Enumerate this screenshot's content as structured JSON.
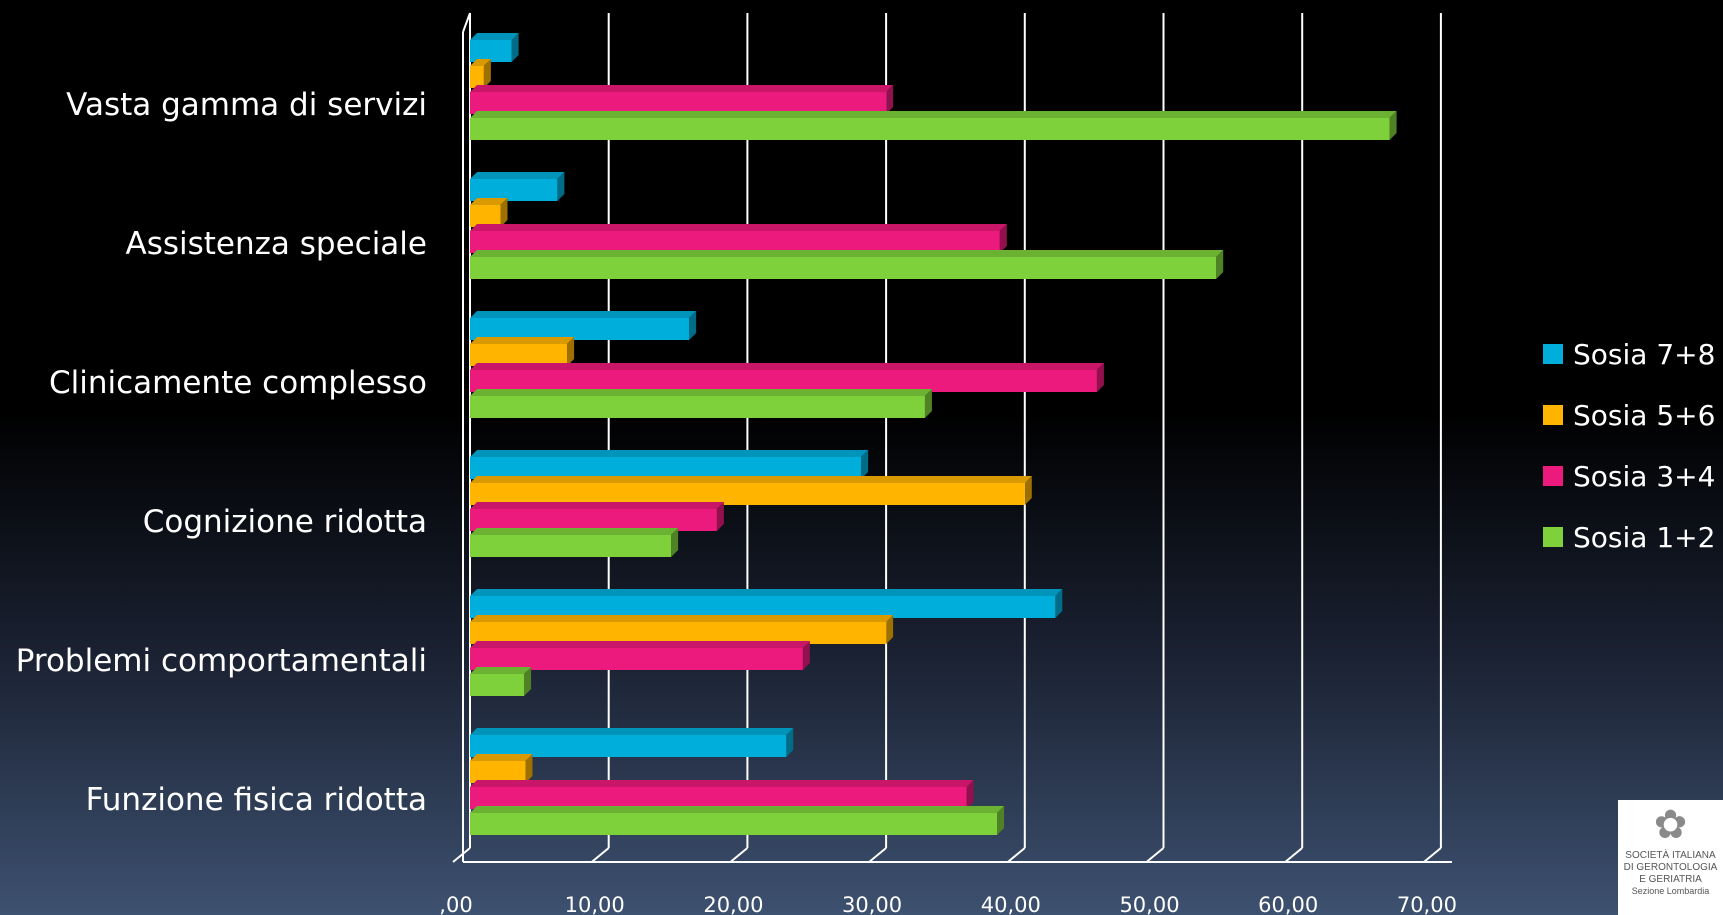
{
  "chart_data": {
    "type": "bar",
    "orientation": "horizontal",
    "three_d": true,
    "categories": [
      "Vasta gamma di servizi",
      "Assistenza speciale",
      "Clinicamente complesso",
      "Cognizione ridotta",
      "Problemi comportamentali",
      "Funzione fisica ridotta"
    ],
    "series": [
      {
        "name": "Sosia 7+8",
        "color": "#00aedb",
        "values": [
          3.0,
          6.3,
          15.8,
          28.2,
          42.2,
          22.8
        ]
      },
      {
        "name": "Sosia 5+6",
        "color": "#ffb400",
        "values": [
          1.0,
          2.2,
          7.0,
          40.0,
          30.0,
          4.0
        ]
      },
      {
        "name": "Sosia 3+4",
        "color": "#ec1a7c",
        "values": [
          30.0,
          38.2,
          45.2,
          17.8,
          24.0,
          35.8
        ]
      },
      {
        "name": "Sosia 1+2",
        "color": "#7fd13b",
        "values": [
          66.3,
          53.8,
          32.8,
          14.5,
          3.9,
          38.0
        ]
      }
    ],
    "xlim": [
      0,
      70
    ],
    "tick_values": [
      0,
      10,
      20,
      30,
      40,
      50,
      60,
      70
    ],
    "tick_labels": [
      ",00",
      "10,00",
      "20,00",
      "30,00",
      "40,00",
      "50,00",
      "60,00",
      "70,00"
    ],
    "grid": true,
    "legend": {
      "position": "right",
      "order": [
        "Sosia 7+8",
        "Sosia 5+6",
        "Sosia 3+4",
        "Sosia 1+2"
      ]
    },
    "title": "",
    "xlabel": "",
    "ylabel": ""
  },
  "logo": {
    "lines": [
      "SOCIETÀ ITALIANA",
      "DI GERONTOLOGIA",
      "E GERIATRIA"
    ],
    "sub": "Sezione Lombardia"
  }
}
